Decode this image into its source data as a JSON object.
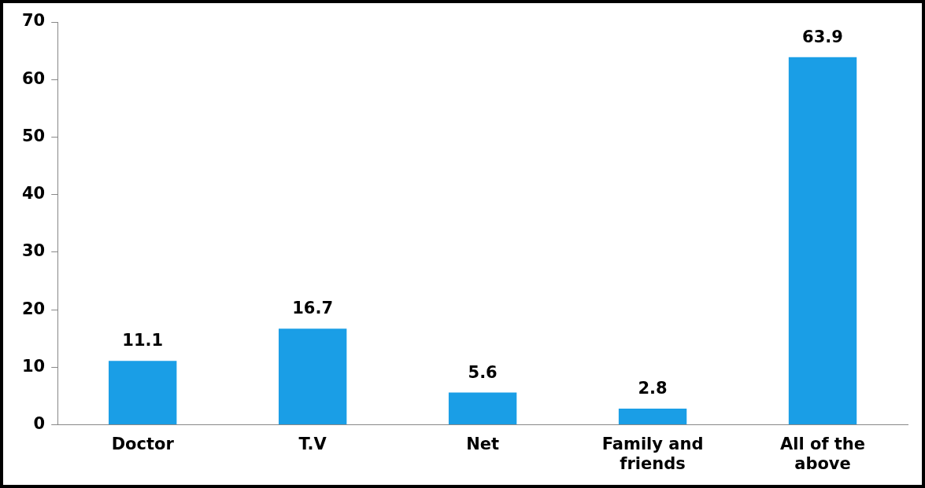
{
  "chart_data": {
    "type": "bar",
    "categories": [
      "Doctor",
      "T.V",
      "Net",
      "Family and friends",
      "All of the above"
    ],
    "values": [
      11.1,
      16.7,
      5.6,
      2.8,
      63.9
    ],
    "color": "#1a9ee6",
    "ylim": [
      0,
      70
    ],
    "yticks": [
      0,
      10,
      20,
      30,
      40,
      50,
      60,
      70
    ],
    "grid": false,
    "legend": false,
    "data_labels": true
  }
}
